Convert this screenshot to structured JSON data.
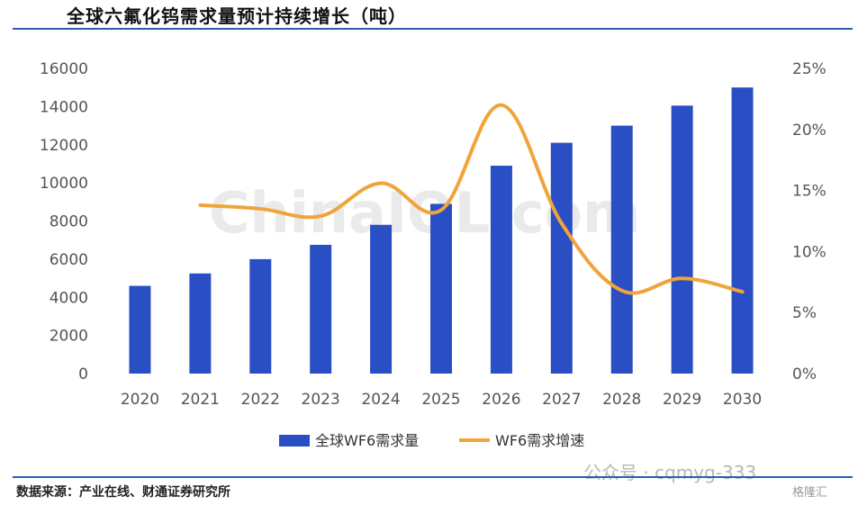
{
  "header": {
    "title": "全球六氟化钨需求量预计持续增长（吨）"
  },
  "footer": {
    "source": "数据来源：产业在线、财通证券研究所"
  },
  "watermarks": {
    "center": "ChinaIOL.com",
    "wechat": "公众号 · cqmyg-333",
    "logo": "格隆汇"
  },
  "chart_data": {
    "type": "bar",
    "categories": [
      "2020",
      "2021",
      "2022",
      "2023",
      "2024",
      "2025",
      "2026",
      "2027",
      "2028",
      "2029",
      "2030"
    ],
    "series": [
      {
        "name": "全球WF6需求量",
        "type": "bar",
        "axis": "left",
        "values": [
          4600,
          5250,
          6000,
          6750,
          7800,
          8900,
          10900,
          12100,
          13000,
          14050,
          15000
        ]
      },
      {
        "name": "WF6需求增速",
        "type": "line",
        "axis": "right",
        "values": [
          null,
          13.8,
          13.5,
          12.9,
          15.6,
          13.4,
          22.0,
          12.3,
          6.8,
          7.8,
          6.7
        ]
      }
    ],
    "y_left": {
      "min": 0,
      "max": 16000,
      "ticks": [
        "0",
        "2000",
        "4000",
        "6000",
        "8000",
        "10000",
        "12000",
        "14000",
        "16000"
      ]
    },
    "y_right": {
      "min": 0,
      "max": 25,
      "ticks": [
        "0%",
        "5%",
        "10%",
        "15%",
        "20%",
        "25%"
      ]
    },
    "grid": false,
    "legend_position": "bottom",
    "colors": {
      "bar": "#2a4fc4",
      "line": "#f0a43a"
    }
  }
}
